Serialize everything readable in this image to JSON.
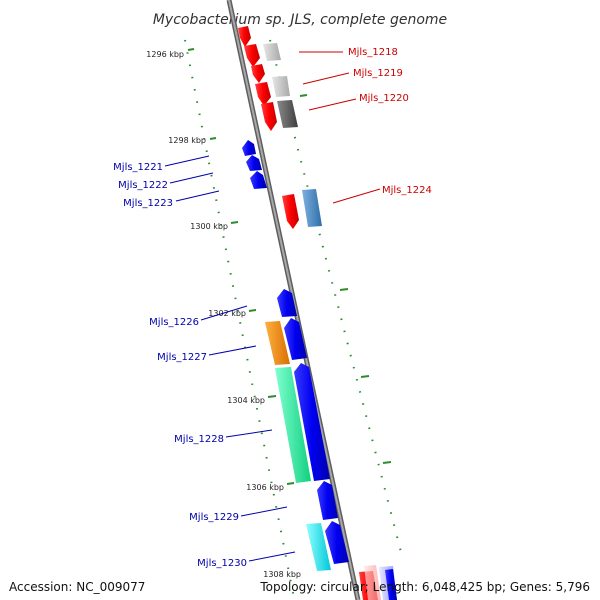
{
  "title": "Mycobacterium sp. JLS, complete genome",
  "footer": {
    "accession": "Accession: NC_009077",
    "summary": "Topology: circular; Length: 6,048,425 bp; Genes: 5,796"
  },
  "colors": {
    "backbone": "#8c8c8c",
    "ruler": "#2e8b2e",
    "forward_label": "#cc0000",
    "reverse_label": "#0000aa"
  },
  "ruler_labels": [
    "1296 kbp",
    "1298 kbp",
    "1300 kbp",
    "1302 kbp",
    "1304 kbp",
    "1306 kbp",
    "1308 kbp"
  ],
  "genes": [
    {
      "name": "Mjls_1218",
      "strand": "forward",
      "fill": "#b0b0b0"
    },
    {
      "name": "Mjls_1219",
      "strand": "forward",
      "fill": "#c8c8c8"
    },
    {
      "name": "Mjls_1220",
      "strand": "forward",
      "fill": "#5a5a5a"
    },
    {
      "name": "Mjls_1221",
      "strand": "reverse",
      "fill": "#0000ee"
    },
    {
      "name": "Mjls_1222",
      "strand": "reverse",
      "fill": "#0000ee"
    },
    {
      "name": "Mjls_1223",
      "strand": "reverse",
      "fill": "#0000ee"
    },
    {
      "name": "Mjls_1224",
      "strand": "forward",
      "fill": "#4682b4"
    },
    {
      "name": "Mjls_1226",
      "strand": "reverse",
      "fill": "#0000ee"
    },
    {
      "name": "Mjls_1227",
      "strand": "reverse",
      "fill": "#ff8c00"
    },
    {
      "name": "Mjls_1228",
      "strand": "reverse",
      "fill": "#2ee8a0"
    },
    {
      "name": "Mjls_1229",
      "strand": "reverse",
      "fill": "#0000ee"
    },
    {
      "name": "Mjls_1230",
      "strand": "reverse",
      "fill": "#00e8e8"
    }
  ]
}
